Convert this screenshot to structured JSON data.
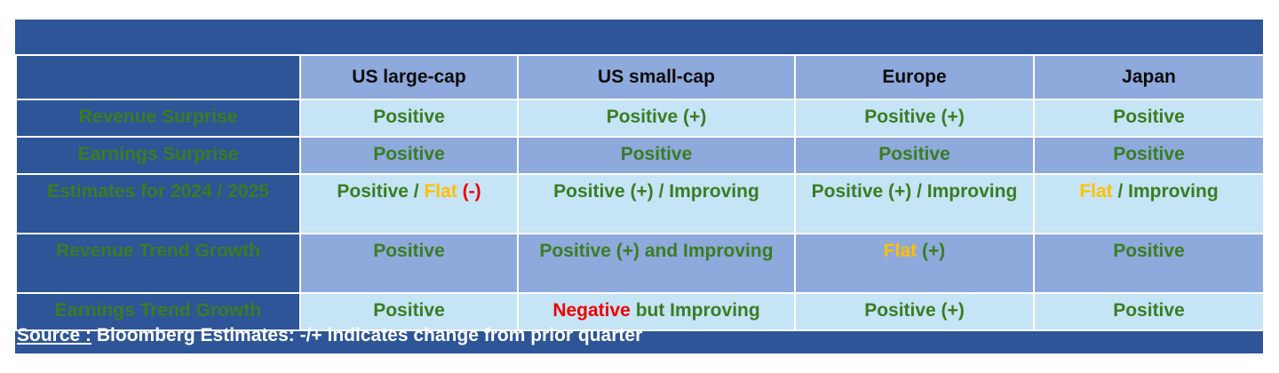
{
  "columns": [
    "US large-cap",
    "US small-cap",
    "Europe",
    "Japan"
  ],
  "rows": [
    {
      "label": "Revenue Surprise",
      "cells": [
        [
          {
            "text": "Positive",
            "color": "green"
          }
        ],
        [
          {
            "text": "Positive (+)",
            "color": "green"
          }
        ],
        [
          {
            "text": "Positive (+)",
            "color": "green"
          }
        ],
        [
          {
            "text": "Positive",
            "color": "green"
          }
        ]
      ]
    },
    {
      "label": "Earnings Surprise",
      "cells": [
        [
          {
            "text": "Positive",
            "color": "green"
          }
        ],
        [
          {
            "text": "Positive",
            "color": "green"
          }
        ],
        [
          {
            "text": "Positive",
            "color": "green"
          }
        ],
        [
          {
            "text": "Positive",
            "color": "green"
          }
        ]
      ]
    },
    {
      "label": "Estimates for 2024 / 2025",
      "cells": [
        [
          {
            "text": "Positive / ",
            "color": "green"
          },
          {
            "text": "Flat",
            "color": "orange"
          },
          {
            "text": " (-)",
            "color": "red"
          }
        ],
        [
          {
            "text": "Positive (+) / Improving",
            "color": "green"
          }
        ],
        [
          {
            "text": "Positive (+) / Improving",
            "color": "green"
          }
        ],
        [
          {
            "text": "Flat",
            "color": "orange"
          },
          {
            "text": " / Improving",
            "color": "green"
          }
        ]
      ]
    },
    {
      "label": "Revenue Trend Growth",
      "cells": [
        [
          {
            "text": "Positive",
            "color": "green"
          }
        ],
        [
          {
            "text": "Positive (+) and Improving",
            "color": "green"
          }
        ],
        [
          {
            "text": "Flat",
            "color": "orange"
          },
          {
            "text": " (+)",
            "color": "green"
          }
        ],
        [
          {
            "text": "Positive",
            "color": "green"
          }
        ]
      ]
    },
    {
      "label": "Earnings Trend Growth",
      "cells": [
        [
          {
            "text": "Positive",
            "color": "green"
          }
        ],
        [
          {
            "text": "Negative",
            "color": "red"
          },
          {
            "text": " but Improving",
            "color": "green"
          }
        ],
        [
          {
            "text": "Positive (+)",
            "color": "green"
          }
        ],
        [
          {
            "text": "Positive",
            "color": "green"
          }
        ]
      ]
    }
  ],
  "footer": {
    "source_label": "Source :",
    "text": " Bloomberg Estimates: -/+ indicates change from prior quarter"
  },
  "colors": {
    "header_navy": "#2d5597",
    "light_blue": "#c5e4f5",
    "mid_blue": "#8ea9db",
    "green": "#3a7d22",
    "orange": "#ffc000",
    "red": "#ee0000"
  }
}
